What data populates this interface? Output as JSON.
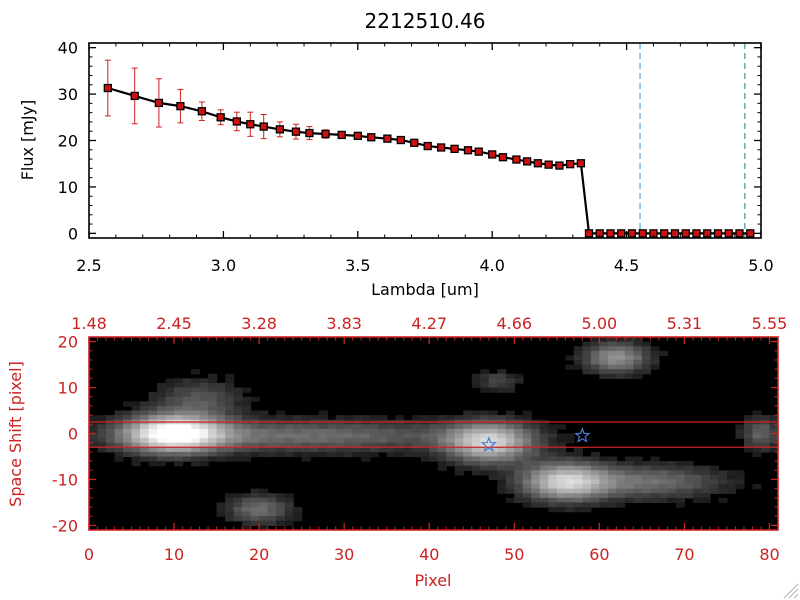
{
  "colors": {
    "black": "#000000",
    "red": "#cc2222",
    "marker": "#cc1111",
    "errorbar": "#cc2020",
    "blue_dash": "#5aa0d8",
    "teal_dash": "#3a9a8a",
    "star": "#4a7ad8",
    "image_bg": "#000000"
  },
  "chart_data": [
    {
      "type": "line",
      "title": "2212510.46",
      "xlabel": "Lambda [um]",
      "ylabel": "Flux [mJy]",
      "xlim": [
        2.5,
        5.0
      ],
      "ylim": [
        -1,
        41
      ],
      "xticks": [
        {
          "v": 2.5,
          "label": "2.5"
        },
        {
          "v": 3.0,
          "label": "3.0"
        },
        {
          "v": 3.5,
          "label": "3.5"
        },
        {
          "v": 4.0,
          "label": "4.0"
        },
        {
          "v": 4.5,
          "label": "4.5"
        },
        {
          "v": 5.0,
          "label": "5.0"
        }
      ],
      "yticks": [
        {
          "v": 0,
          "label": "0"
        },
        {
          "v": 10,
          "label": "10"
        },
        {
          "v": 20,
          "label": "20"
        },
        {
          "v": 30,
          "label": "30"
        },
        {
          "v": 40,
          "label": "40"
        }
      ],
      "vlines": [
        {
          "x": 4.55,
          "color": "#5aa0d8"
        },
        {
          "x": 4.94,
          "color": "#3a9a8a"
        }
      ],
      "series": [
        {
          "x": [
            2.57,
            2.67,
            2.76,
            2.84,
            2.92,
            2.99,
            3.05,
            3.1,
            3.15,
            3.21,
            3.27,
            3.32,
            3.38,
            3.44,
            3.5,
            3.55,
            3.61,
            3.66,
            3.71,
            3.76,
            3.81,
            3.86,
            3.91,
            3.95,
            4.0,
            4.04,
            4.09,
            4.13,
            4.17,
            4.21,
            4.25,
            4.29,
            4.33,
            4.36,
            4.4,
            4.44,
            4.48,
            4.52,
            4.56,
            4.6,
            4.64,
            4.68,
            4.72,
            4.76,
            4.8,
            4.84,
            4.88,
            4.92,
            4.96
          ],
          "y": [
            31.3,
            29.6,
            28.1,
            27.4,
            26.3,
            25.0,
            24.1,
            23.5,
            23.0,
            22.4,
            21.9,
            21.6,
            21.4,
            21.2,
            21.0,
            20.7,
            20.4,
            20.1,
            19.5,
            18.8,
            18.5,
            18.2,
            17.9,
            17.6,
            17.0,
            16.4,
            15.9,
            15.5,
            15.1,
            14.8,
            14.6,
            14.9,
            15.1,
            0.0,
            0.0,
            0.0,
            0.0,
            0.0,
            0.0,
            0.0,
            0.0,
            0.0,
            0.0,
            0.0,
            0.0,
            0.0,
            0.0,
            0.0,
            0.0
          ],
          "yerr": [
            6.0,
            6.0,
            5.2,
            3.6,
            2.0,
            1.6,
            2.0,
            2.6,
            2.6,
            1.6,
            1.6,
            1.4,
            0.9,
            0.7,
            0.5,
            0.5,
            0.5,
            0.5,
            0.5,
            0.5,
            0.5,
            0.5,
            0.5,
            0.5,
            0.5,
            0.5,
            0.5,
            0.5,
            0.5,
            0.5,
            0.5,
            0.5,
            0.5,
            0.3,
            0.3,
            0.3,
            0.3,
            0.3,
            0.3,
            0.3,
            0.3,
            0.3,
            0.3,
            0.3,
            0.3,
            0.3,
            0.3,
            0.3,
            0.3
          ]
        }
      ]
    },
    {
      "type": "heatmap",
      "xlabel": "Pixel",
      "ylabel": "Space Shift [pixel]",
      "xlim": [
        0,
        81
      ],
      "ylim": [
        -21,
        21
      ],
      "xticks": [
        {
          "v": 0,
          "label": "0"
        },
        {
          "v": 10,
          "label": "10"
        },
        {
          "v": 20,
          "label": "20"
        },
        {
          "v": 30,
          "label": "30"
        },
        {
          "v": 40,
          "label": "40"
        },
        {
          "v": 50,
          "label": "50"
        },
        {
          "v": 60,
          "label": "60"
        },
        {
          "v": 70,
          "label": "70"
        },
        {
          "v": 80,
          "label": "80"
        }
      ],
      "yticks": [
        {
          "v": 20,
          "label": "20"
        },
        {
          "v": 10,
          "label": "10"
        },
        {
          "v": 0,
          "label": "0"
        },
        {
          "v": -10,
          "label": "-10"
        },
        {
          "v": -20,
          "label": "-20"
        }
      ],
      "top_axis_ticks": [
        {
          "v": 0,
          "label": "1.48"
        },
        {
          "v": 10,
          "label": "2.45"
        },
        {
          "v": 20,
          "label": "3.28"
        },
        {
          "v": 30,
          "label": "3.83"
        },
        {
          "v": 40,
          "label": "4.27"
        },
        {
          "v": 50,
          "label": "4.66"
        },
        {
          "v": 60,
          "label": "5.00"
        },
        {
          "v": 70,
          "label": "5.31"
        },
        {
          "v": 80,
          "label": "5.55"
        }
      ],
      "hlines": [
        2.5,
        -3.0
      ],
      "markers": [
        {
          "x": 47,
          "y": -2.5,
          "symbol": "star"
        },
        {
          "x": 58,
          "y": -0.5,
          "symbol": "star"
        }
      ],
      "sources": [
        {
          "x": 10,
          "y": 0.0,
          "peak": 1.0,
          "sx": 4.0,
          "sy": 2.8
        },
        {
          "x": 25,
          "y": -0.5,
          "peak": 0.35,
          "sx": 14.0,
          "sy": 2.4
        },
        {
          "x": 47,
          "y": -2.0,
          "peak": 0.75,
          "sx": 3.5,
          "sy": 3.0
        },
        {
          "x": 56,
          "y": -10.5,
          "peak": 0.75,
          "sx": 3.5,
          "sy": 2.8
        },
        {
          "x": 66,
          "y": -10.5,
          "peak": 0.35,
          "sx": 6.0,
          "sy": 2.5
        },
        {
          "x": 62,
          "y": 16.5,
          "peak": 0.5,
          "sx": 2.6,
          "sy": 2.3
        },
        {
          "x": 20,
          "y": -16.5,
          "peak": 0.35,
          "sx": 2.6,
          "sy": 2.2
        },
        {
          "x": 13,
          "y": 7.5,
          "peak": 0.25,
          "sx": 3.5,
          "sy": 3.0
        },
        {
          "x": 48,
          "y": 11.5,
          "peak": 0.2,
          "sx": 1.8,
          "sy": 1.6
        },
        {
          "x": 79,
          "y": 0.0,
          "peak": 0.3,
          "sx": 1.6,
          "sy": 2.5
        }
      ]
    }
  ]
}
